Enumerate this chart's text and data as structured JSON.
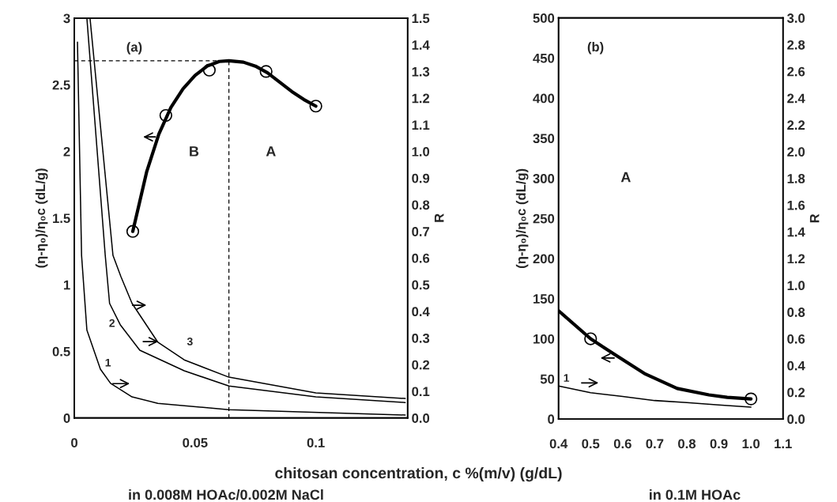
{
  "chart_data": [
    {
      "type": "line",
      "ylabel": "(η-η₀)/η₀c (dL/g)",
      "y2label": "R",
      "xlim": [
        0,
        0.138
      ],
      "xticks": [
        0,
        0.05,
        0.1
      ],
      "ylim": [
        0,
        3
      ],
      "yticks": [
        0,
        0.5,
        1,
        1.5,
        2,
        2.5,
        3
      ],
      "y2lim": [
        0,
        1.5
      ],
      "y2ticks": [
        {
          "value": 0,
          "label": "0.0"
        },
        {
          "value": 0.1,
          "label": "0.1"
        },
        {
          "value": 0.2,
          "label": "0.2"
        },
        {
          "value": 0.3,
          "label": "0.3"
        },
        {
          "value": 0.4,
          "label": "0.4"
        },
        {
          "value": 0.5,
          "label": "0.5"
        },
        {
          "value": 0.6,
          "label": "0.6"
        },
        {
          "value": 0.7,
          "label": "0.7"
        },
        {
          "value": 0.8,
          "label": "0.8"
        },
        {
          "value": 0.9,
          "label": "0.9"
        },
        {
          "value": 1.0,
          "label": "1.0"
        },
        {
          "value": 1.1,
          "label": "1.1"
        },
        {
          "value": 1.2,
          "label": "1.2"
        },
        {
          "value": 1.3,
          "label": "1.3"
        },
        {
          "value": 1.4,
          "label": "1.4"
        },
        {
          "value": 1.5,
          "label": "1.5"
        }
      ],
      "series": [
        {
          "axis": "y",
          "color": "#000000",
          "x": [
            0.0242,
            0.03,
            0.035,
            0.04,
            0.045,
            0.05,
            0.055,
            0.06,
            0.064,
            0.07,
            0.075,
            0.08,
            0.085,
            0.09,
            0.095,
            0.1
          ],
          "values": [
            1.4,
            1.85,
            2.13,
            2.33,
            2.47,
            2.57,
            2.64,
            2.675,
            2.68,
            2.67,
            2.64,
            2.59,
            2.52,
            2.45,
            2.39,
            2.34
          ]
        },
        {
          "type": "scatter",
          "axis": "y",
          "color": "#000000",
          "marker": "circle",
          "x": [
            0.0242,
            0.0379,
            0.0559,
            0.0794,
            0.1
          ],
          "values": [
            1.4,
            2.27,
            2.61,
            2.6,
            2.34
          ]
        },
        {
          "axis": "y2",
          "color": "#000000",
          "x": [
            0.0013,
            0.003,
            0.0052,
            0.0108,
            0.015,
            0.0239,
            0.0346,
            0.064,
            0.137
          ],
          "values": [
            1.41,
            0.61,
            0.33,
            0.183,
            0.13,
            0.079,
            0.055,
            0.031,
            0.011
          ]
        },
        {
          "axis": "y2",
          "color": "#000000",
          "x": [
            0.0052,
            0.0128,
            0.0146,
            0.019,
            0.0271,
            0.0455,
            0.064,
            0.1,
            0.137
          ],
          "values": [
            1.5,
            0.61,
            0.43,
            0.35,
            0.254,
            0.177,
            0.12,
            0.079,
            0.058
          ]
        },
        {
          "axis": "y2",
          "color": "#000000",
          "x": [
            0.0065,
            0.016,
            0.0193,
            0.0239,
            0.0346,
            0.0455,
            0.064,
            0.1,
            0.137
          ],
          "values": [
            1.5,
            0.61,
            0.53,
            0.43,
            0.284,
            0.218,
            0.153,
            0.094,
            0.073
          ]
        }
      ],
      "ref_lines": [
        {
          "axis": "y",
          "value": 2.68,
          "line_style": "dashed"
        },
        {
          "axis": "x",
          "value": 0.064,
          "line_style": "dashed"
        }
      ],
      "annotations": [
        "(a)",
        "B",
        "A",
        "1",
        "2",
        "3",
        "chitosan concentration, c %(m/v) (g/dL)",
        "in 0.008M HOAc/0.002M NaCl"
      ],
      "legend": false,
      "grid": false
    },
    {
      "type": "line",
      "ylabel": "(η-η₀)/η₀c (dL/g)",
      "y2label": "R",
      "xlim": [
        0.4,
        1.1
      ],
      "xticks": [
        {
          "value": 0.4,
          "label": "0.4"
        },
        {
          "value": 0.5,
          "label": "0.5"
        },
        {
          "value": 0.6,
          "label": "0.6"
        },
        {
          "value": 0.7,
          "label": "0.7"
        },
        {
          "value": 0.8,
          "label": "0.8"
        },
        {
          "value": 0.9,
          "label": "0.9"
        },
        {
          "value": 1.0,
          "label": "1.0"
        },
        {
          "value": 1.1,
          "label": "1.1"
        }
      ],
      "ylim": [
        0,
        500
      ],
      "yticks": [
        0,
        50,
        100,
        150,
        200,
        250,
        300,
        350,
        400,
        450,
        500
      ],
      "y2lim": [
        0,
        3.0
      ],
      "y2ticks": [
        {
          "value": 0,
          "label": "0.0"
        },
        {
          "value": 0.2,
          "label": "0.2"
        },
        {
          "value": 0.4,
          "label": "0.4"
        },
        {
          "value": 0.6,
          "label": "0.6"
        },
        {
          "value": 0.8,
          "label": "0.8"
        },
        {
          "value": 1.0,
          "label": "1.0"
        },
        {
          "value": 1.2,
          "label": "1.2"
        },
        {
          "value": 1.4,
          "label": "1.4"
        },
        {
          "value": 1.6,
          "label": "1.6"
        },
        {
          "value": 1.8,
          "label": "1.8"
        },
        {
          "value": 2.0,
          "label": "2.0"
        },
        {
          "value": 2.2,
          "label": "2.2"
        },
        {
          "value": 2.4,
          "label": "2.4"
        },
        {
          "value": 2.6,
          "label": "2.6"
        },
        {
          "value": 2.8,
          "label": "2.8"
        },
        {
          "value": 3.0,
          "label": "3.0"
        }
      ],
      "series": [
        {
          "axis": "y",
          "color": "#000000",
          "x": [
            0.4,
            0.5,
            0.588,
            0.671,
            0.77,
            0.869,
            0.926,
            1.0
          ],
          "values": [
            135,
            100,
            77,
            56,
            38,
            30,
            27,
            25
          ]
        },
        {
          "type": "scatter",
          "axis": "y",
          "color": "#000000",
          "marker": "circle",
          "x": [
            0.5,
            1.0
          ],
          "values": [
            100,
            25
          ]
        },
        {
          "axis": "y2",
          "color": "#000000",
          "x": [
            0.4,
            0.5,
            0.6,
            0.7,
            0.8,
            0.9,
            1.0
          ],
          "values": [
            0.246,
            0.196,
            0.168,
            0.138,
            0.123,
            0.105,
            0.089
          ]
        }
      ],
      "annotations": [
        "(b)",
        "A",
        "1",
        "in 0.1M HOAc"
      ],
      "legend": false,
      "grid": false
    }
  ]
}
